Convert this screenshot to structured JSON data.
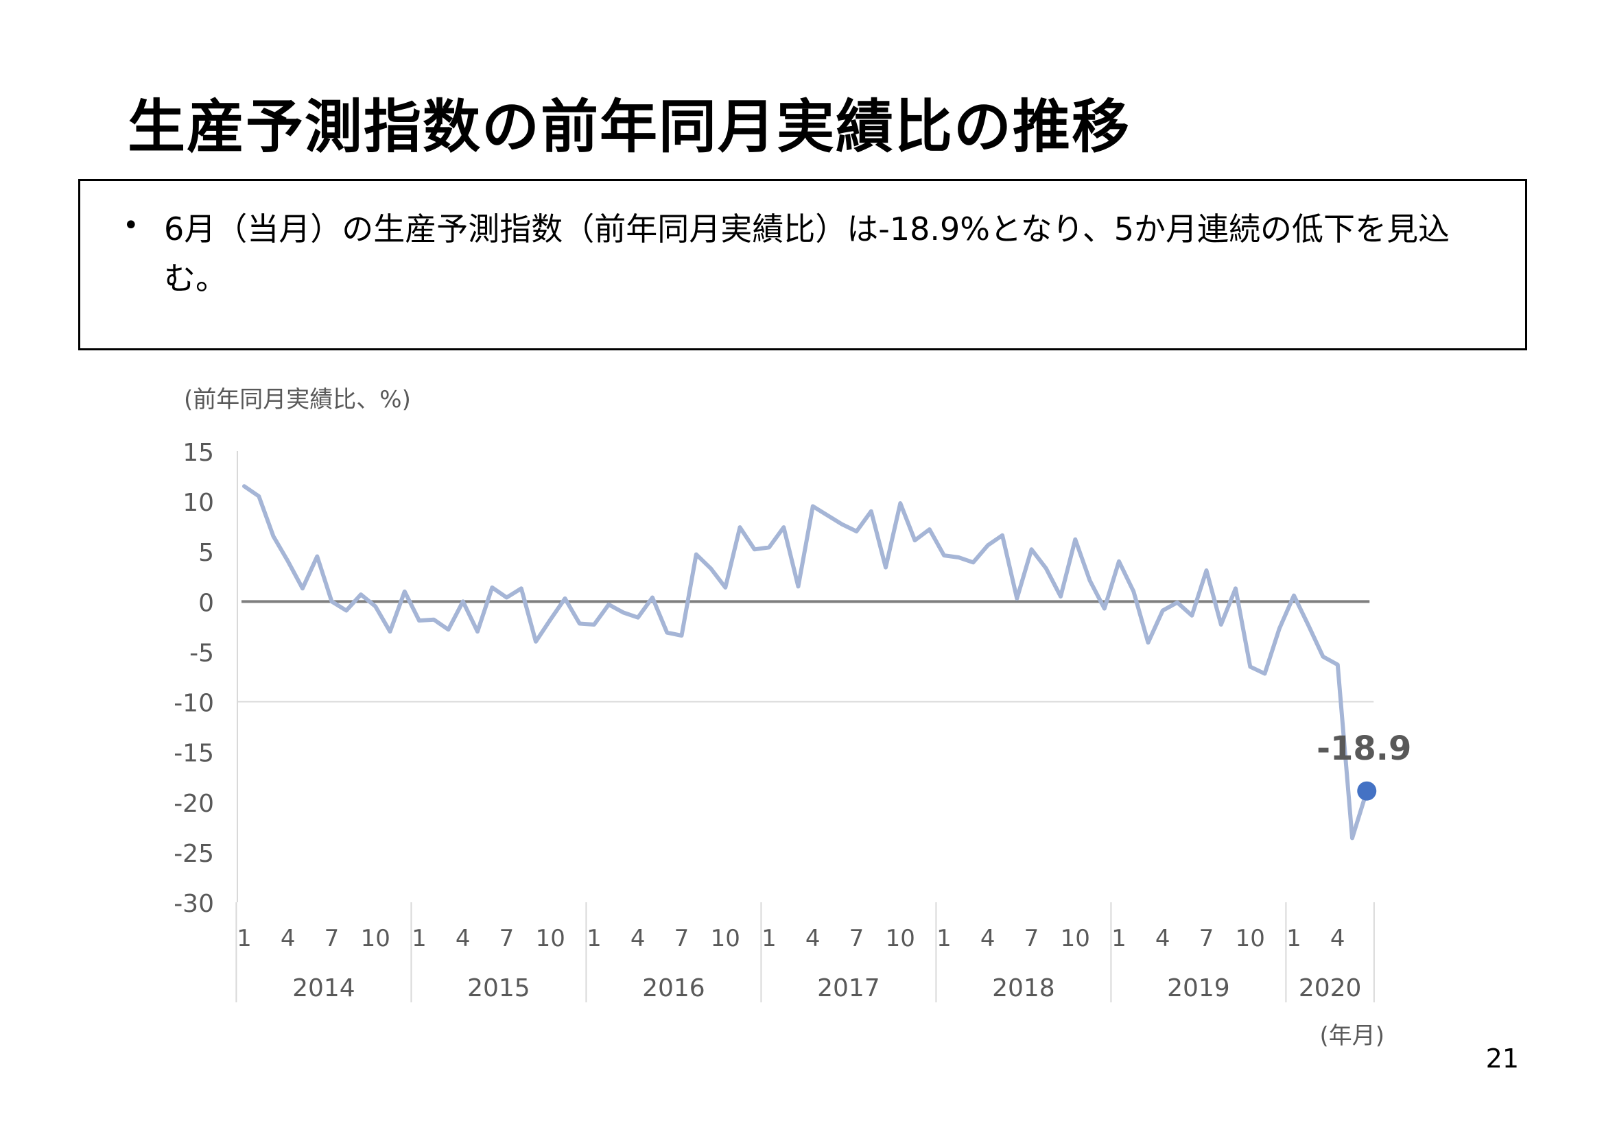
{
  "title": "生産予測指数の前年同月実績比の推移",
  "summary": {
    "bullet": "•",
    "text": "6月（当月）の生産予測指数（前年同月実績比）は-18.9%となり、5か月連続の低下を見込む。"
  },
  "page_number": "21",
  "colors": {
    "line": "#a5b5d6",
    "zero_line": "#7f7f7f",
    "marker": "#4472c4",
    "grid": "#d9d9d9"
  },
  "chart_data": {
    "type": "line",
    "ylabel": "(前年同月実績比、%)",
    "xlabel": "(年月)",
    "ylim": [
      -30,
      15
    ],
    "yticks": [
      "15",
      "10",
      "5",
      "0",
      "-5",
      "-10",
      "-15",
      "-20",
      "-25",
      "-30"
    ],
    "month_ticks": [
      "1",
      "4",
      "7",
      "10"
    ],
    "years": [
      "2014",
      "2015",
      "2016",
      "2017",
      "2018",
      "2019",
      "2020"
    ],
    "grid": "y at -10",
    "series": [
      {
        "start": "2014-01",
        "values": [
          11.5,
          10.5,
          6.5,
          4.0,
          1.3,
          4.5,
          0.0,
          -0.9,
          0.7,
          -0.5,
          -3.0,
          1.0,
          -1.9,
          -1.8,
          -2.8,
          0.0,
          -3.0,
          1.4,
          0.4,
          1.3,
          -4.0,
          -1.8,
          0.3,
          -2.2,
          -2.3,
          -0.3,
          -1.1,
          -1.6,
          0.4,
          -3.1,
          -3.4,
          4.7,
          3.3,
          1.4,
          7.4,
          5.2,
          5.4,
          7.4,
          1.5,
          9.5,
          8.6,
          7.7,
          7.0,
          9.0,
          3.4,
          9.8,
          6.1,
          7.2,
          4.6,
          4.4,
          3.9,
          5.6,
          6.6,
          0.3,
          5.2,
          3.3,
          0.5,
          6.2,
          2.1,
          -0.7,
          4.0,
          1.0,
          -4.1,
          -0.9,
          -0.1,
          -1.4,
          3.1,
          -2.3,
          1.3,
          -6.5,
          -7.2,
          -2.7,
          0.6,
          -2.4,
          -5.5,
          -6.3,
          -23.6,
          -18.9
        ]
      }
    ],
    "annotation": {
      "label": "-18.9",
      "value": -18.9,
      "month": "2020-06"
    }
  }
}
